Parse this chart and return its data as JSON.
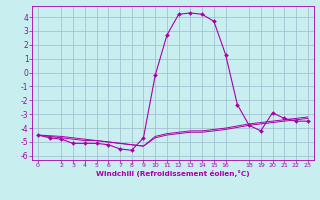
{
  "title": "",
  "xlabel": "Windchill (Refroidissement éolien,°C)",
  "bg_color": "#c8eef0",
  "line_color": "#aa00aa",
  "grid_color": "#99bbcc",
  "xlim": [
    -0.5,
    23.5
  ],
  "ylim": [
    -6.3,
    4.8
  ],
  "xticks": [
    0,
    2,
    3,
    4,
    5,
    6,
    7,
    8,
    9,
    10,
    11,
    12,
    13,
    14,
    15,
    16,
    18,
    19,
    20,
    21,
    22,
    23
  ],
  "yticks": [
    -6,
    -5,
    -4,
    -3,
    -2,
    -1,
    0,
    1,
    2,
    3,
    4
  ],
  "line1_x": [
    0,
    1,
    2,
    3,
    4,
    5,
    6,
    7,
    8,
    9,
    10,
    11,
    12,
    13,
    14,
    15,
    16,
    17,
    18,
    19,
    20,
    21,
    22,
    23
  ],
  "line1_y": [
    -4.5,
    -4.7,
    -4.8,
    -5.1,
    -5.1,
    -5.1,
    -5.2,
    -5.5,
    -5.6,
    -4.7,
    -0.2,
    2.7,
    4.2,
    4.3,
    4.2,
    3.7,
    1.3,
    -2.3,
    -3.8,
    -4.2,
    -2.9,
    -3.3,
    -3.5,
    -3.5
  ],
  "line2_x": [
    0,
    2,
    3,
    4,
    5,
    6,
    7,
    8,
    9,
    10,
    11,
    12,
    13,
    14,
    15,
    16,
    18,
    19,
    20,
    21,
    22,
    23
  ],
  "line2_y": [
    -4.5,
    -4.7,
    -4.8,
    -4.9,
    -4.9,
    -5.0,
    -5.1,
    -5.2,
    -5.3,
    -4.7,
    -4.5,
    -4.4,
    -4.3,
    -4.3,
    -4.2,
    -4.1,
    -3.8,
    -3.7,
    -3.6,
    -3.5,
    -3.4,
    -3.3
  ],
  "line3_x": [
    0,
    2,
    3,
    4,
    5,
    6,
    7,
    8,
    9,
    10,
    11,
    12,
    13,
    14,
    15,
    16,
    18,
    19,
    20,
    21,
    22,
    23
  ],
  "line3_y": [
    -4.5,
    -4.6,
    -4.7,
    -4.8,
    -4.9,
    -5.0,
    -5.1,
    -5.2,
    -5.3,
    -4.6,
    -4.4,
    -4.3,
    -4.2,
    -4.2,
    -4.1,
    -4.0,
    -3.7,
    -3.6,
    -3.5,
    -3.4,
    -3.3,
    -3.2
  ]
}
